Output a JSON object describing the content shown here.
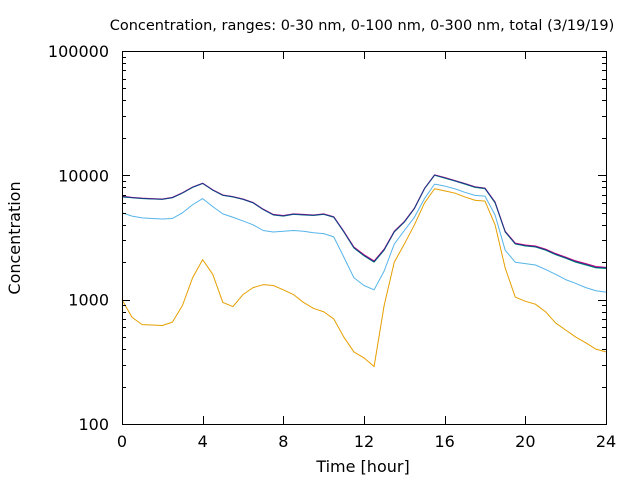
{
  "chart_data": {
    "type": "line",
    "title": "Concentration, ranges: 0-30 nm, 0-100 nm, 0-300 nm, total (3/19/19)",
    "xlabel": "Time [hour]",
    "ylabel": "Concentration",
    "xlim": [
      0,
      24
    ],
    "ylim": [
      100,
      100000
    ],
    "yscale": "log",
    "grid": false,
    "legend": "none",
    "x_ticks": [
      {
        "value": 0,
        "label": "0"
      },
      {
        "value": 4,
        "label": "4"
      },
      {
        "value": 8,
        "label": "8"
      },
      {
        "value": 12,
        "label": "12"
      },
      {
        "value": 16,
        "label": "16"
      },
      {
        "value": 20,
        "label": "20"
      },
      {
        "value": 24,
        "label": "24"
      }
    ],
    "y_ticks": [
      {
        "value": 100,
        "label": "100"
      },
      {
        "value": 1000,
        "label": "1000"
      },
      {
        "value": 10000,
        "label": "10000"
      },
      {
        "value": 100000,
        "label": "100000"
      }
    ],
    "x": [
      0,
      0.5,
      1,
      1.5,
      2,
      2.5,
      3,
      3.5,
      4,
      4.5,
      5,
      5.5,
      6,
      6.5,
      7,
      7.5,
      8,
      8.5,
      9,
      9.5,
      10,
      10.5,
      11,
      11.5,
      12,
      12.5,
      13,
      13.5,
      14,
      14.5,
      15,
      15.5,
      16,
      16.5,
      17,
      17.5,
      18,
      18.5,
      19,
      19.5,
      20,
      20.5,
      21,
      21.5,
      22,
      22.5,
      23,
      23.5,
      24
    ],
    "series": [
      {
        "color": "#e69f00",
        "values": [
          1000,
          720,
          630,
          625,
          620,
          660,
          900,
          1500,
          2100,
          1600,
          950,
          880,
          1100,
          1250,
          1320,
          1300,
          1200,
          1100,
          950,
          850,
          800,
          700,
          500,
          380,
          340,
          290,
          900,
          2000,
          2800,
          4000,
          6000,
          7800,
          7500,
          7200,
          6700,
          6300,
          6200,
          4000,
          1800,
          1050,
          970,
          920,
          800,
          650,
          570,
          500,
          450,
          400,
          380
        ]
      },
      {
        "color": "#56b4e9",
        "values": [
          5000,
          4700,
          4550,
          4500,
          4450,
          4500,
          5000,
          5800,
          6500,
          5600,
          4900,
          4600,
          4300,
          4000,
          3600,
          3500,
          3550,
          3600,
          3550,
          3450,
          3400,
          3200,
          2200,
          1500,
          1300,
          1200,
          1700,
          2800,
          3600,
          4600,
          6500,
          8500,
          8200,
          7800,
          7300,
          6900,
          6800,
          4800,
          2500,
          2000,
          1950,
          1900,
          1750,
          1600,
          1450,
          1350,
          1250,
          1180,
          1150
        ]
      },
      {
        "color": "#009e73",
        "values": [
          6700,
          6600,
          6500,
          6450,
          6400,
          6600,
          7200,
          8000,
          8600,
          7600,
          6900,
          6700,
          6400,
          6000,
          5300,
          4800,
          4700,
          4850,
          4800,
          4750,
          4850,
          4600,
          3500,
          2600,
          2250,
          2000,
          2500,
          3500,
          4200,
          5400,
          7800,
          10000,
          9500,
          9000,
          8500,
          8000,
          7800,
          6000,
          3500,
          2800,
          2700,
          2650,
          2500,
          2300,
          2150,
          2000,
          1900,
          1800,
          1780
        ]
      },
      {
        "color": "#cc0077",
        "values": [
          6800,
          6650,
          6550,
          6500,
          6450,
          6650,
          7250,
          8050,
          8650,
          7650,
          6950,
          6750,
          6450,
          6050,
          5350,
          4850,
          4750,
          4900,
          4850,
          4800,
          4900,
          4650,
          3550,
          2650,
          2300,
          2050,
          2550,
          3550,
          4250,
          5450,
          7850,
          10100,
          9600,
          9100,
          8600,
          8100,
          7900,
          6100,
          3550,
          2850,
          2750,
          2700,
          2550,
          2350,
          2200,
          2050,
          1950,
          1850,
          1820
        ]
      },
      {
        "color": "#1a3a8f",
        "values": [
          6750,
          6620,
          6520,
          6470,
          6420,
          6620,
          7220,
          8020,
          8620,
          7620,
          6920,
          6720,
          6420,
          6020,
          5320,
          4820,
          4720,
          4870,
          4820,
          4770,
          4870,
          4620,
          3520,
          2620,
          2270,
          2020,
          2520,
          3520,
          4220,
          5420,
          7820,
          10050,
          9550,
          9050,
          8550,
          8050,
          7850,
          6050,
          3520,
          2820,
          2720,
          2670,
          2520,
          2320,
          2170,
          2020,
          1920,
          1820,
          1800
        ]
      }
    ]
  }
}
